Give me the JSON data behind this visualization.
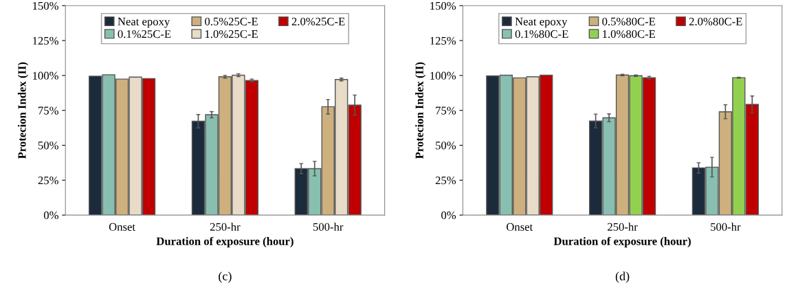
{
  "chart_data": [
    {
      "type": "bar",
      "xlabel": "Duration of exposure (hour)",
      "ylabel": "Protecion Index (II)",
      "categories": [
        "Onset",
        "250-hr",
        "500-hr"
      ],
      "ylim": [
        0,
        150
      ],
      "yticks": [
        {
          "value": 0,
          "label": "0%"
        },
        {
          "value": 25,
          "label": "25%"
        },
        {
          "value": 50,
          "label": "50%"
        },
        {
          "value": 75,
          "label": "75%"
        },
        {
          "value": 100,
          "label": "100%"
        },
        {
          "value": 125,
          "label": "125%"
        },
        {
          "value": 150,
          "label": "150%"
        }
      ],
      "legend": "top",
      "annotations": [
        "(c)"
      ],
      "series": [
        {
          "name": "Neat epoxy",
          "color": "#1b2b3b",
          "values": [
            99.5,
            67.2,
            33.3
          ],
          "errors": [
            null,
            4.8,
            3.6
          ]
        },
        {
          "name": "0.1%25C-E",
          "color": "#88bfb1",
          "values": [
            100.5,
            71.9,
            33.3
          ],
          "errors": [
            null,
            2.2,
            5.2
          ]
        },
        {
          "name": "0.5%25C-E",
          "color": "#cdb07e",
          "values": [
            97.4,
            99.1,
            77.6
          ],
          "errors": [
            null,
            1,
            5.2
          ]
        },
        {
          "name": "1.0%25C-E",
          "color": "#e8dcc8",
          "values": [
            98.8,
            100.2,
            97.1
          ],
          "errors": [
            null,
            1,
            1
          ]
        },
        {
          "name": "2.0%25C-E",
          "color": "#c00000",
          "values": [
            97.8,
            96.4,
            78.8
          ],
          "errors": [
            null,
            1,
            7.2
          ]
        }
      ]
    },
    {
      "type": "bar",
      "xlabel": "Duration of exposure (hour)",
      "ylabel": "Protecion Index (II)",
      "categories": [
        "Onset",
        "250-hr",
        "500-hr"
      ],
      "ylim": [
        0,
        150
      ],
      "yticks": [
        {
          "value": 0,
          "label": "0%"
        },
        {
          "value": 25,
          "label": "25%"
        },
        {
          "value": 50,
          "label": "50%"
        },
        {
          "value": 75,
          "label": "75%"
        },
        {
          "value": 100,
          "label": "100%"
        },
        {
          "value": 125,
          "label": "125%"
        },
        {
          "value": 150,
          "label": "150%"
        }
      ],
      "legend": "top",
      "annotations": [
        "(d)"
      ],
      "series": [
        {
          "name": "Neat epoxy",
          "color": "#1b2b3b",
          "values": [
            99.7,
            67.4,
            33.8
          ],
          "errors": [
            null,
            4.9,
            3.7
          ]
        },
        {
          "name": "0.1%80C-E",
          "color": "#88bfb1",
          "values": [
            100.2,
            69.7,
            34.3
          ],
          "errors": [
            null,
            2.8,
            7
          ]
        },
        {
          "name": "0.5%80C-E",
          "color": "#cdb07e",
          "values": [
            98.3,
            100.3,
            74
          ],
          "errors": [
            null,
            0.5,
            5
          ]
        },
        {
          "name": "1.0%80C-E",
          "color": "#92d050",
          "colors": [
            "#e8dcc8",
            "#92d050",
            "#92d050"
          ],
          "values": [
            99.1,
            99.8,
            98.4
          ],
          "errors": [
            null,
            0.5,
            0.3
          ]
        },
        {
          "name": "2.0%80C-E",
          "color": "#c00000",
          "values": [
            100.2,
            98.4,
            79.3
          ],
          "errors": [
            null,
            1,
            6
          ]
        }
      ]
    }
  ]
}
